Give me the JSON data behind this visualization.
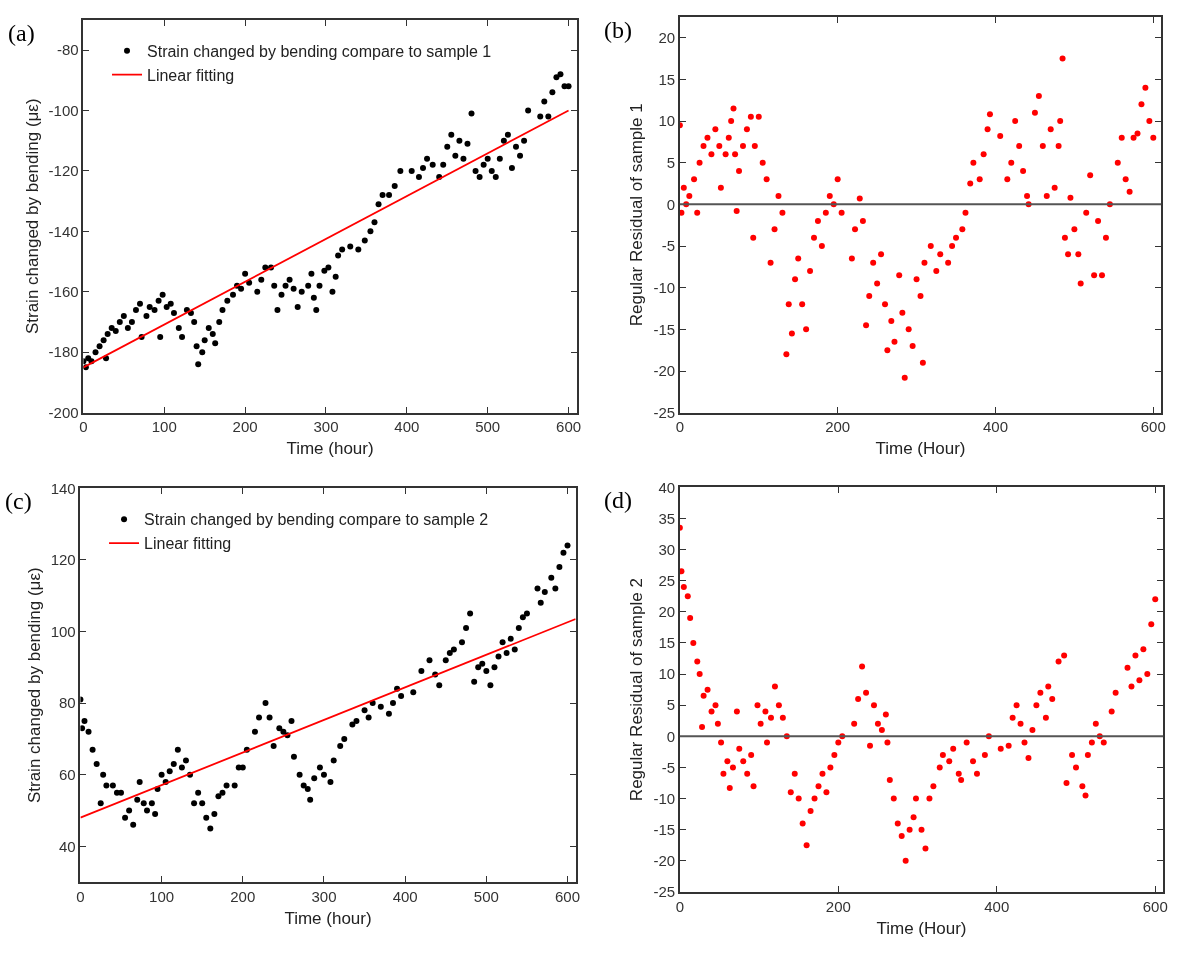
{
  "chart_data": [
    {
      "type": "scatter",
      "annotations": [
        "(a)"
      ],
      "xlabel": "Time (hour)",
      "ylabel": "Strain changed by bending (με)",
      "legend": "top left",
      "xlim": [
        0,
        610
      ],
      "xticks": [
        0,
        100,
        200,
        300,
        400,
        500,
        600
      ],
      "ylim": [
        -200,
        -70
      ],
      "yticks": [
        -200,
        -180,
        -160,
        -140,
        -120,
        -100,
        -80
      ],
      "series": [
        {
          "name": "Strain changed by bending compare to sample 1",
          "marker": "circle",
          "color": "#000000",
          "x": [
            0,
            3,
            6,
            10,
            15,
            20,
            25,
            28,
            30,
            35,
            40,
            45,
            50,
            55,
            60,
            65,
            70,
            72,
            78,
            82,
            88,
            93,
            95,
            98,
            103,
            108,
            112,
            118,
            122,
            128,
            133,
            137,
            140,
            142,
            147,
            150,
            155,
            160,
            163,
            168,
            172,
            178,
            185,
            190,
            195,
            200,
            205,
            215,
            220,
            225,
            232,
            236,
            240,
            245,
            250,
            255,
            260,
            265,
            270,
            278,
            282,
            285,
            288,
            292,
            298,
            303,
            308,
            312,
            315,
            320,
            330,
            340,
            348,
            355,
            360,
            365,
            370,
            378,
            385,
            392,
            406,
            415,
            420,
            425,
            432,
            440,
            445,
            450,
            455,
            460,
            465,
            470,
            475,
            480,
            485,
            490,
            495,
            500,
            505,
            510,
            515,
            520,
            525,
            530,
            535,
            540,
            545,
            550,
            565,
            570,
            575,
            580,
            585,
            590,
            595,
            600
          ],
          "values": [
            -183,
            -185,
            -182,
            -183,
            -180,
            -178,
            -176,
            -182,
            -174,
            -172,
            -173,
            -170,
            -168,
            -172,
            -170,
            -166,
            -164,
            -175,
            -168,
            -165,
            -166,
            -163,
            -175,
            -161,
            -165,
            -164,
            -167,
            -172,
            -175,
            -166,
            -167,
            -170,
            -178,
            -184,
            -180,
            -176,
            -172,
            -174,
            -177,
            -170,
            -166,
            -163,
            -161,
            -158,
            -159,
            -154,
            -157,
            -160,
            -156,
            -152,
            -152,
            -158,
            -166,
            -161,
            -158,
            -156,
            -159,
            -165,
            -160,
            -158,
            -154,
            -162,
            -166,
            -158,
            -153,
            -152,
            -160,
            -155,
            -148,
            -146,
            -145,
            -146,
            -143,
            -140,
            -137,
            -131,
            -128,
            -128,
            -125,
            -120,
            -120,
            -122,
            -119,
            -116,
            -118,
            -122,
            -118,
            -112,
            -108,
            -115,
            -110,
            -116,
            -111,
            -101,
            -120,
            -122,
            -118,
            -116,
            -120,
            -122,
            -116,
            -110,
            -108,
            -119,
            -112,
            -115,
            -110,
            -100,
            -102,
            -97,
            -102,
            -94,
            -89,
            -88,
            -92,
            -92
          ]
        },
        {
          "type": "line",
          "name": "Linear fitting",
          "color": "#ff0000",
          "x": [
            0,
            600
          ],
          "values": [
            -185,
            -100
          ]
        }
      ]
    },
    {
      "type": "scatter",
      "annotations": [
        "(b)"
      ],
      "xlabel": "Time (Hour)",
      "ylabel": "Regular Residual of sample 1",
      "marker": "circle",
      "xlim": [
        0,
        610
      ],
      "xticks": [
        0,
        200,
        400,
        600
      ],
      "ylim": [
        -25,
        22.5
      ],
      "yticks": [
        -25,
        -20,
        -15,
        -10,
        -5,
        0,
        5,
        10,
        15,
        20
      ],
      "ref_lines": [
        {
          "axis": "y",
          "value": 0,
          "color": "#555555"
        }
      ],
      "series": [
        {
          "color": "#ff0000",
          "x": [
            0,
            2,
            5,
            8,
            12,
            18,
            22,
            25,
            30,
            35,
            40,
            45,
            50,
            52,
            58,
            62,
            65,
            68,
            70,
            72,
            75,
            80,
            85,
            90,
            93,
            95,
            100,
            105,
            110,
            115,
            120,
            125,
            130,
            135,
            138,
            142,
            146,
            150,
            155,
            160,
            165,
            170,
            175,
            180,
            185,
            190,
            195,
            200,
            205,
            218,
            222,
            228,
            232,
            236,
            240,
            245,
            250,
            255,
            260,
            263,
            268,
            272,
            278,
            282,
            285,
            290,
            295,
            300,
            305,
            308,
            310,
            318,
            325,
            330,
            340,
            345,
            350,
            358,
            362,
            368,
            372,
            380,
            385,
            390,
            393,
            406,
            415,
            420,
            425,
            430,
            435,
            440,
            442,
            450,
            455,
            460,
            465,
            470,
            475,
            480,
            482,
            485,
            488,
            492,
            495,
            500,
            505,
            508,
            515,
            520,
            525,
            530,
            535,
            540,
            545,
            555,
            560,
            565,
            570,
            575,
            580,
            585,
            590,
            595,
            600
          ],
          "values": [
            9.5,
            -1,
            2,
            0,
            1,
            3,
            -1,
            5,
            7,
            8,
            6,
            9,
            7,
            2,
            6,
            8,
            10,
            11.5,
            6,
            -0.8,
            4,
            7,
            9,
            10.5,
            -4,
            7,
            10.5,
            5,
            3,
            -7,
            -3,
            1,
            -1,
            -18,
            -12,
            -15.5,
            -9,
            -6.5,
            -12,
            -15,
            -8,
            -4,
            -2,
            -5,
            -1,
            1,
            0,
            3,
            -1,
            -6.5,
            -3,
            0.7,
            -2,
            -14.5,
            -11,
            -7,
            -9.5,
            -6,
            -12,
            -17.5,
            -14,
            -16.5,
            -8.5,
            -13,
            -20.8,
            -15,
            -17,
            -9,
            -11,
            -19,
            -7,
            -5,
            -8,
            -6,
            -7,
            -5,
            -4,
            -3,
            -1,
            2.5,
            5,
            3,
            6,
            9,
            10.8,
            8.2,
            3,
            5,
            10,
            7,
            4,
            1,
            0,
            11,
            13,
            7,
            1,
            9,
            2,
            7,
            10,
            17.5,
            -4,
            -6,
            0.8,
            -3,
            -6,
            -9.5,
            -1,
            3.5,
            -8.5,
            -2,
            -8.5,
            -4,
            0,
            5,
            8,
            3,
            1.5,
            8,
            8.5,
            12,
            14,
            10,
            8
          ]
        }
      ]
    },
    {
      "type": "scatter",
      "annotations": [
        "(c)"
      ],
      "xlabel": "Time (hour)",
      "ylabel": "Strain changed by bending (με)",
      "legend": "top left",
      "xlim": [
        0,
        610
      ],
      "xticks": [
        0,
        100,
        200,
        300,
        400,
        500,
        600
      ],
      "ylim": [
        30,
        140
      ],
      "yticks": [
        40,
        60,
        80,
        100,
        120,
        140
      ],
      "series": [
        {
          "name": "Strain changed by bending compare to sample 2",
          "marker": "circle",
          "color": "#000000",
          "x": [
            0,
            2,
            5,
            10,
            15,
            20,
            25,
            28,
            32,
            40,
            45,
            50,
            55,
            60,
            65,
            70,
            73,
            78,
            82,
            88,
            92,
            95,
            100,
            105,
            110,
            115,
            120,
            125,
            130,
            135,
            140,
            145,
            150,
            155,
            160,
            165,
            170,
            175,
            180,
            190,
            195,
            200,
            205,
            215,
            220,
            228,
            233,
            238,
            245,
            250,
            255,
            260,
            263,
            270,
            275,
            280,
            283,
            288,
            295,
            300,
            308,
            312,
            320,
            325,
            335,
            340,
            350,
            355,
            360,
            370,
            380,
            385,
            390,
            395,
            410,
            420,
            430,
            437,
            442,
            450,
            455,
            460,
            470,
            475,
            480,
            485,
            490,
            495,
            500,
            505,
            510,
            515,
            520,
            525,
            530,
            535,
            540,
            545,
            550,
            563,
            567,
            572,
            580,
            585,
            590,
            595,
            600
          ],
          "values": [
            81,
            73,
            75,
            72,
            67,
            63,
            52,
            60,
            57,
            57,
            55,
            55,
            48,
            50,
            46,
            53,
            58,
            52,
            50,
            52,
            49,
            56,
            60,
            58,
            61,
            63,
            67,
            62,
            64,
            60,
            52,
            55,
            52,
            48,
            45,
            49,
            54,
            55,
            57,
            57,
            62,
            62,
            67,
            72,
            76,
            80,
            76,
            68,
            73,
            72,
            71,
            75,
            65,
            60,
            57,
            56,
            53,
            59,
            62,
            60,
            58,
            64,
            68,
            70,
            74,
            75,
            78,
            76,
            80,
            79,
            77,
            80,
            84,
            82,
            83,
            89,
            92,
            88,
            85,
            92,
            94,
            95,
            97,
            101,
            105,
            86,
            90,
            91,
            89,
            85,
            90,
            93,
            97,
            94,
            98,
            95,
            101,
            104,
            105,
            112,
            108,
            111,
            115,
            112,
            118,
            122,
            124
          ]
        },
        {
          "type": "line",
          "name": "Linear fitting",
          "color": "#ff0000",
          "x": [
            0,
            610
          ],
          "values": [
            48,
            103.5
          ]
        }
      ]
    },
    {
      "type": "scatter",
      "annotations": [
        "(d)"
      ],
      "xlabel": "Time (Hour)",
      "ylabel": "Regular Residual of sample 2",
      "marker": "circle",
      "xlim": [
        0,
        610
      ],
      "xticks": [
        0,
        200,
        400,
        600
      ],
      "ylim": [
        -25,
        40
      ],
      "yticks": [
        -25,
        -20,
        -15,
        -10,
        -5,
        0,
        5,
        10,
        15,
        20,
        25,
        30,
        35,
        40
      ],
      "ref_lines": [
        {
          "axis": "y",
          "value": 0,
          "color": "#555555"
        }
      ],
      "series": [
        {
          "color": "#ff0000",
          "x": [
            0,
            2,
            5,
            10,
            13,
            17,
            22,
            25,
            28,
            30,
            35,
            40,
            45,
            48,
            52,
            55,
            60,
            63,
            67,
            72,
            75,
            80,
            85,
            90,
            93,
            98,
            102,
            108,
            110,
            115,
            120,
            125,
            130,
            135,
            140,
            145,
            150,
            155,
            160,
            165,
            170,
            175,
            180,
            185,
            190,
            195,
            200,
            205,
            220,
            225,
            230,
            235,
            240,
            245,
            250,
            255,
            260,
            262,
            265,
            270,
            275,
            280,
            285,
            290,
            295,
            298,
            305,
            310,
            315,
            320,
            328,
            332,
            340,
            345,
            352,
            355,
            362,
            370,
            375,
            385,
            390,
            405,
            415,
            420,
            425,
            430,
            435,
            440,
            445,
            450,
            455,
            462,
            465,
            470,
            478,
            485,
            488,
            495,
            500,
            508,
            512,
            515,
            520,
            525,
            530,
            535,
            545,
            550,
            565,
            570,
            575,
            580,
            585,
            590,
            595,
            600
          ],
          "values": [
            33.5,
            26.5,
            24,
            22.5,
            19,
            15,
            12,
            10,
            1.5,
            6.5,
            7.5,
            4,
            5,
            2,
            -1,
            -6,
            -4,
            -8.3,
            -5,
            4,
            -2,
            -4,
            -6,
            -3,
            -8,
            5,
            2,
            4,
            -1,
            3,
            8,
            5,
            3,
            0,
            -9,
            -6,
            -10,
            -14,
            -17.5,
            -12,
            -10,
            -8,
            -6,
            -9,
            -5,
            -3,
            -1,
            0,
            2,
            6,
            11.2,
            7,
            -1.5,
            5,
            2,
            1,
            3.5,
            -1,
            -7,
            -10,
            -14,
            -16,
            -20,
            -15,
            -13,
            -10,
            -15,
            -18,
            -10,
            -8,
            -5,
            -3,
            -4,
            -2,
            -6,
            -7,
            -1,
            -4,
            -6,
            -3,
            0,
            -2,
            -1.5,
            3,
            5,
            2,
            -1,
            -3.5,
            1,
            5,
            7,
            3,
            8,
            6,
            12,
            13,
            -7.5,
            -3,
            -5,
            -8,
            -9.5,
            -3,
            -1,
            2,
            0,
            -1,
            4,
            7,
            11,
            8,
            13,
            9,
            14,
            10,
            18,
            22
          ]
        }
      ]
    }
  ]
}
